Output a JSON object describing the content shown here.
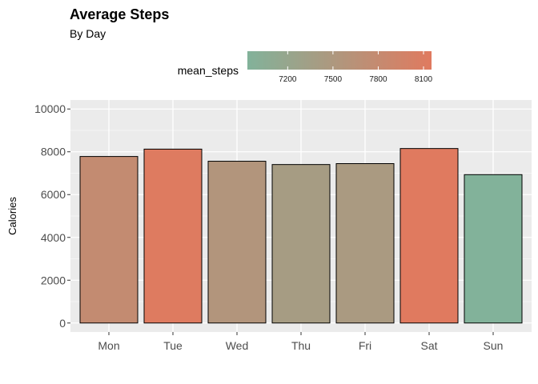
{
  "chart_data": {
    "type": "bar",
    "title": "Average Steps",
    "subtitle": "By Day",
    "xlabel": "",
    "ylabel": "Calories",
    "categories": [
      "Mon",
      "Tue",
      "Wed",
      "Thu",
      "Fri",
      "Sat",
      "Sun"
    ],
    "values": [
      7781,
      8125,
      7559,
      7405,
      7448,
      8153,
      6933
    ],
    "ylim": [
      -420,
      10420
    ],
    "yticks": [
      0,
      2000,
      4000,
      6000,
      8000,
      10000
    ],
    "grid": true,
    "legend": {
      "title": "mean_steps",
      "position": "top",
      "range": [
        6933,
        8153
      ],
      "ticks": [
        7200,
        7500,
        7800,
        8100
      ],
      "low_color": "#82b29a",
      "high_color": "#e07a5f"
    },
    "colors": {
      "panel_background": "#ebebeb",
      "grid_major": "#ffffff",
      "bar_outline": "#000000"
    }
  }
}
